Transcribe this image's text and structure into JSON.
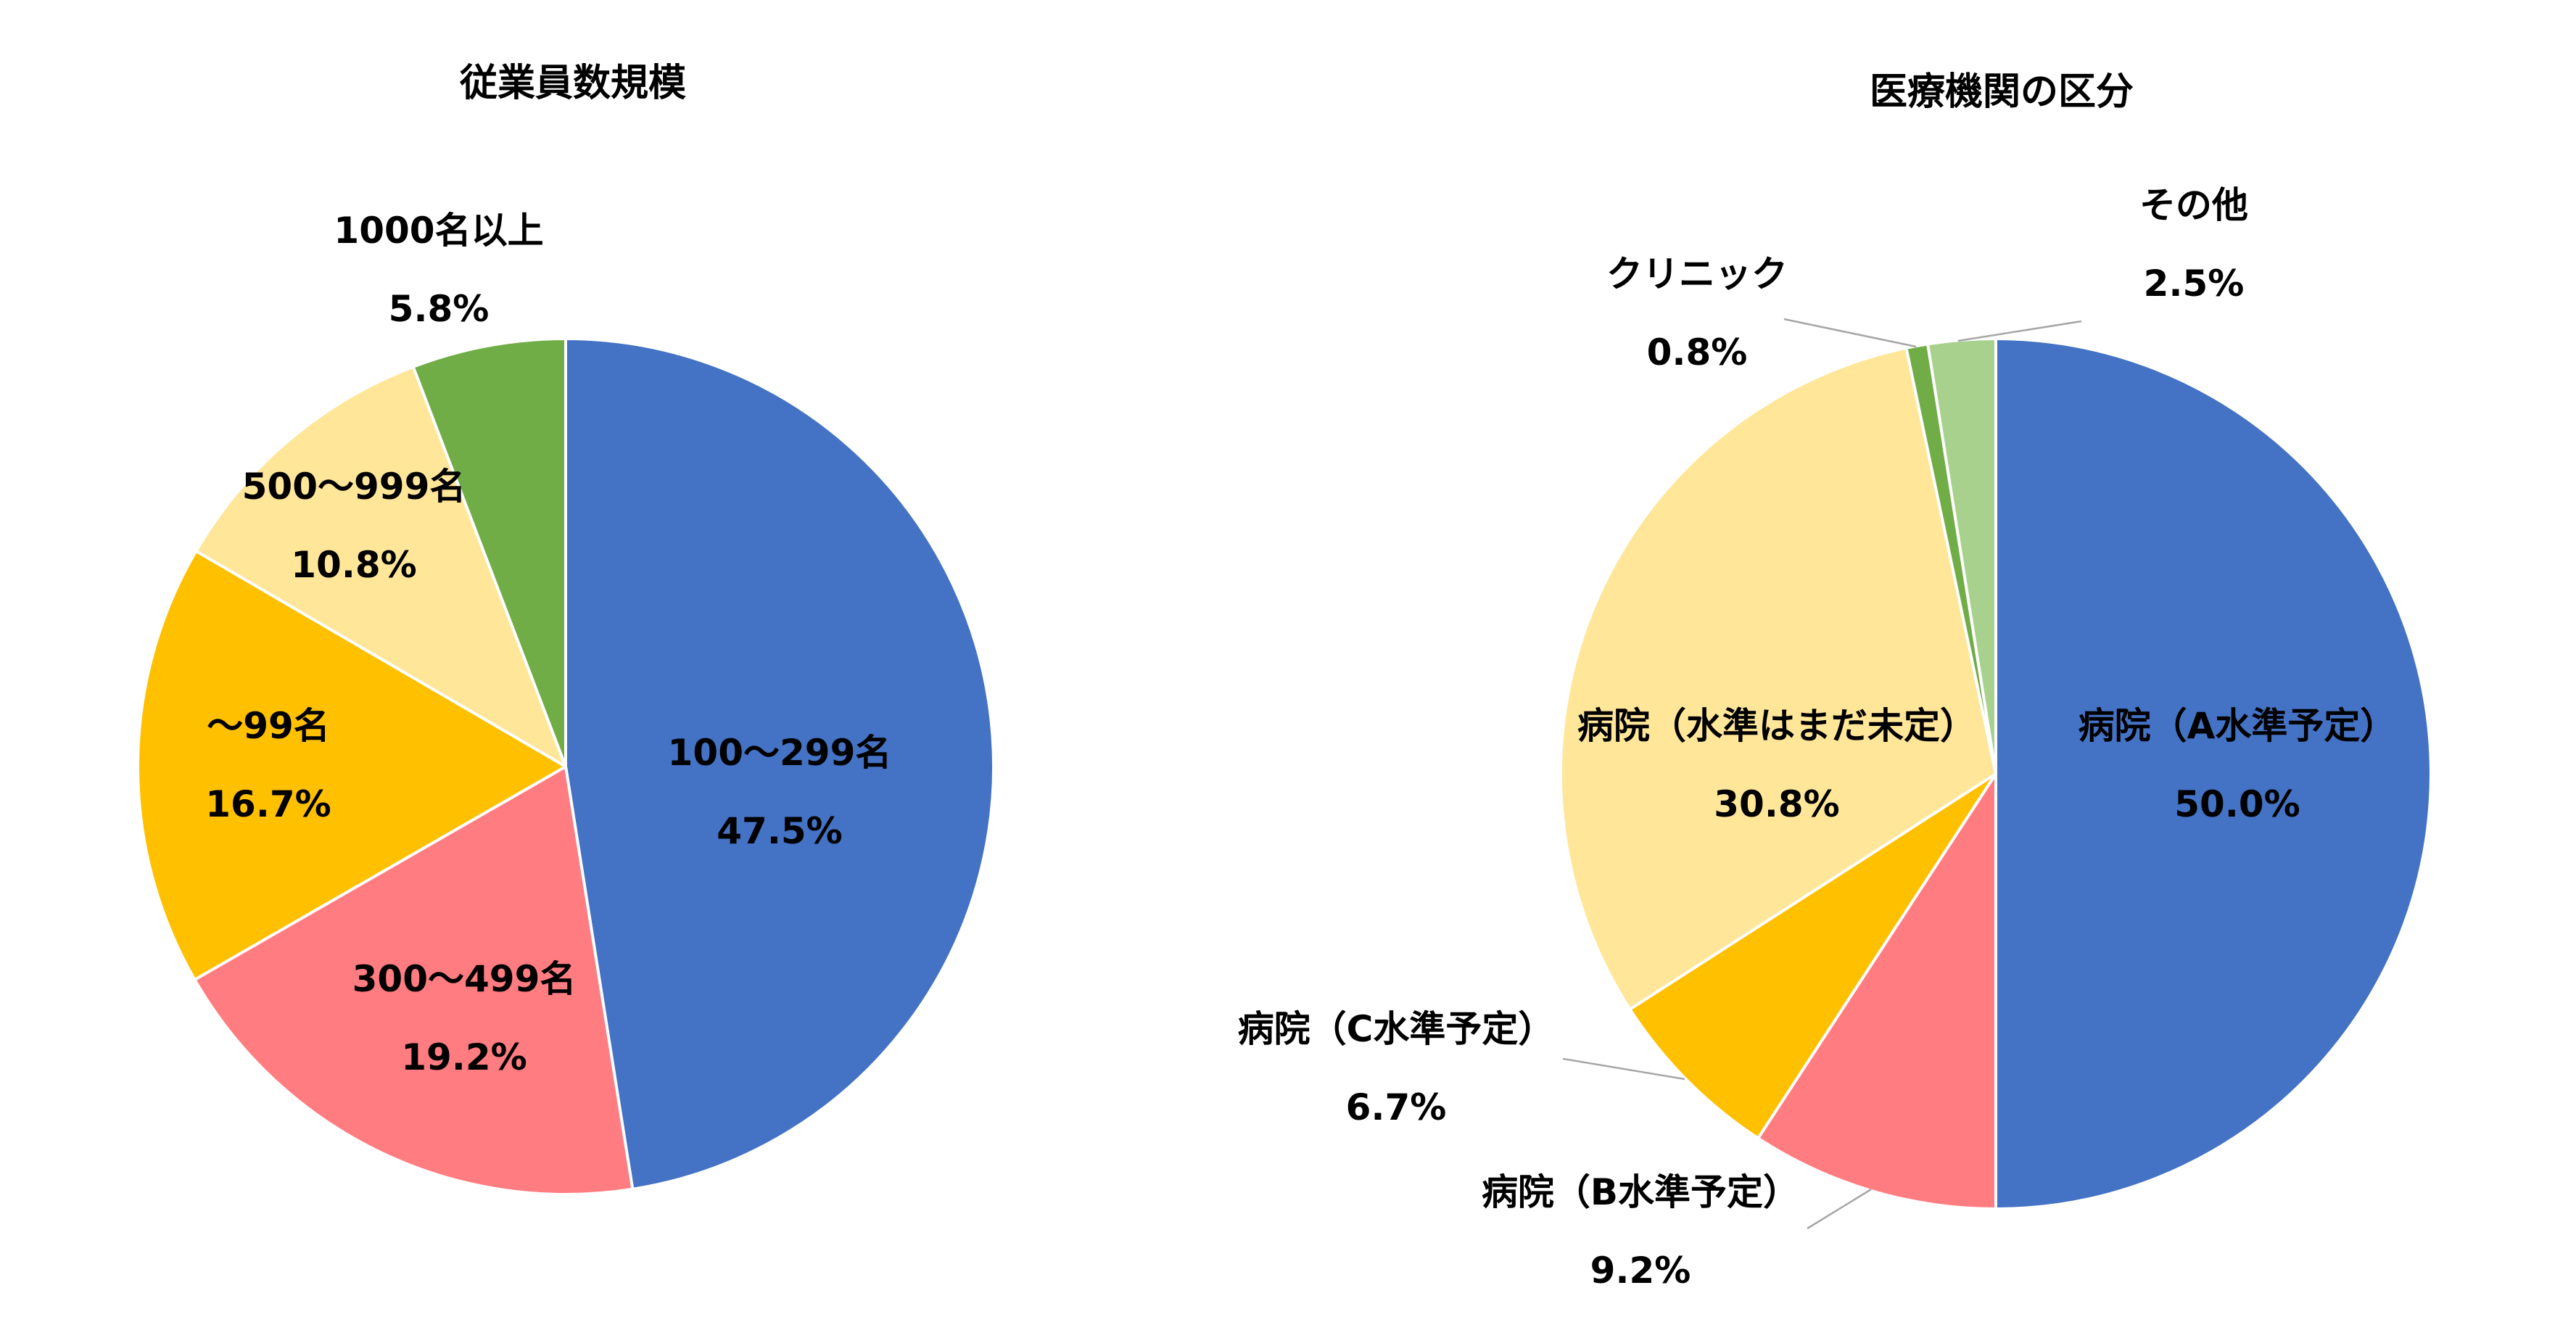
{
  "chart_data": [
    {
      "type": "pie",
      "title": "従業員数規模",
      "unit": "%",
      "slices": [
        {
          "label": "100〜299名",
          "value": 47.5,
          "value_label": "47.5%",
          "color": "#4472C4"
        },
        {
          "label": "300〜499名",
          "value": 19.2,
          "value_label": "19.2%",
          "color": "#FF7C80"
        },
        {
          "label": "〜99名",
          "value": 16.7,
          "value_label": "16.7%",
          "color": "#FFC000"
        },
        {
          "label": "500〜999名",
          "value": 10.8,
          "value_label": "10.8%",
          "color": "#FFE699"
        },
        {
          "label": "1000名以上",
          "value": 5.8,
          "value_label": "5.8%",
          "color": "#70AD47"
        }
      ]
    },
    {
      "type": "pie",
      "title": "医療機関の区分",
      "unit": "%",
      "slices": [
        {
          "label": "病院（A水準予定）",
          "value": 50.0,
          "value_label": "50.0%",
          "color": "#4472C4"
        },
        {
          "label": "病院（B水準予定）",
          "value": 9.2,
          "value_label": "9.2%",
          "color": "#FF7C80"
        },
        {
          "label": "病院（C水準予定）",
          "value": 6.7,
          "value_label": "6.7%",
          "color": "#FFC000"
        },
        {
          "label": "病院（水準はまだ未定）",
          "value": 30.8,
          "value_label": "30.8%",
          "color": "#FFE699"
        },
        {
          "label": "クリニック",
          "value": 0.8,
          "value_label": "0.8%",
          "color": "#70AD47"
        },
        {
          "label": "その他",
          "value": 2.5,
          "value_label": "2.5%",
          "color": "#A9D18E"
        }
      ]
    }
  ]
}
